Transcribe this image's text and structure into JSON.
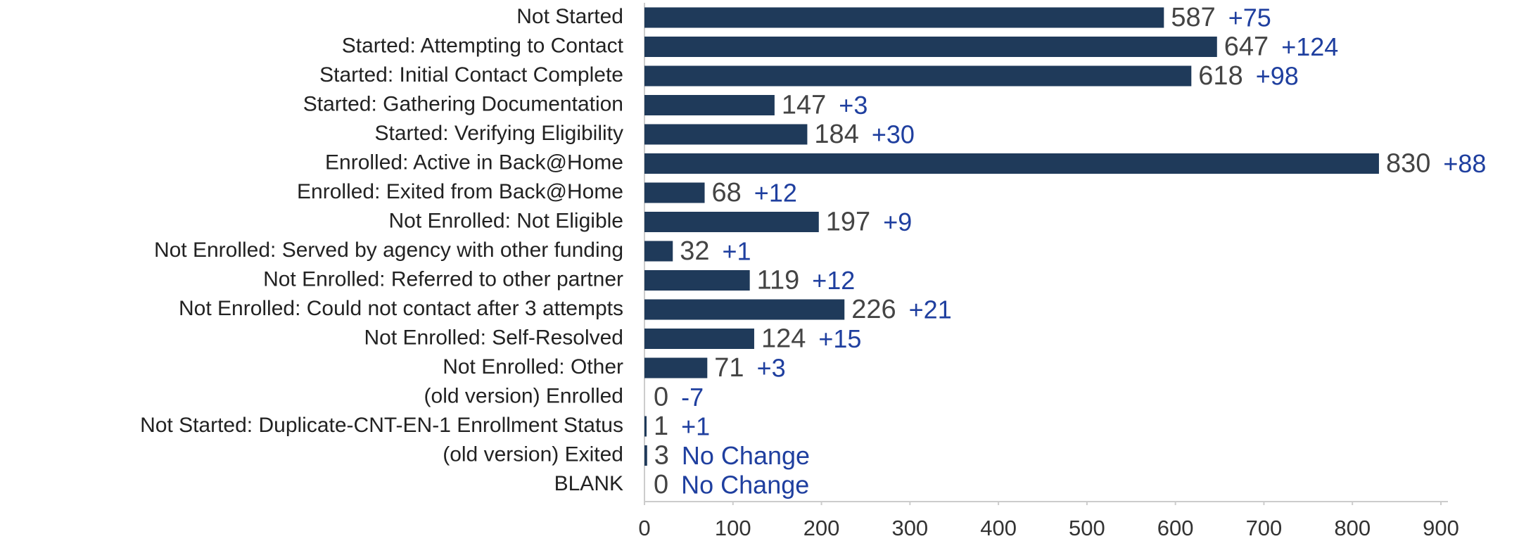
{
  "chart_data": {
    "type": "bar",
    "orientation": "horizontal",
    "categories": [
      "Not Started",
      "Started: Attempting to Contact",
      "Started: Initial Contact Complete",
      "Started: Gathering Documentation",
      "Started: Verifying Eligibility",
      "Enrolled: Active in Back@Home",
      "Enrolled: Exited from Back@Home",
      "Not Enrolled: Not Eligible",
      "Not Enrolled: Served by agency with other funding",
      "Not Enrolled: Referred to other partner",
      "Not Enrolled: Could not contact after 3 attempts",
      "Not Enrolled: Self-Resolved",
      "Not Enrolled: Other",
      "(old version) Enrolled",
      "Not Started: Duplicate-CNT-EN-1 Enrollment Status",
      "(old version) Exited",
      "BLANK"
    ],
    "values": [
      587,
      647,
      618,
      147,
      184,
      830,
      68,
      197,
      32,
      119,
      226,
      124,
      71,
      0,
      1,
      3,
      0
    ],
    "changes": [
      "+75",
      "+124",
      "+98",
      "+3",
      "+30",
      "+88",
      "+12",
      "+9",
      "+1",
      "+12",
      "+21",
      "+15",
      "+3",
      "-7",
      "+1",
      "No Change",
      "No Change"
    ],
    "color": "#1f3a5a",
    "xlim": [
      0,
      900
    ],
    "xticks": [
      0,
      100,
      200,
      300,
      400,
      500,
      600,
      700,
      800,
      900
    ],
    "grid": false
  }
}
